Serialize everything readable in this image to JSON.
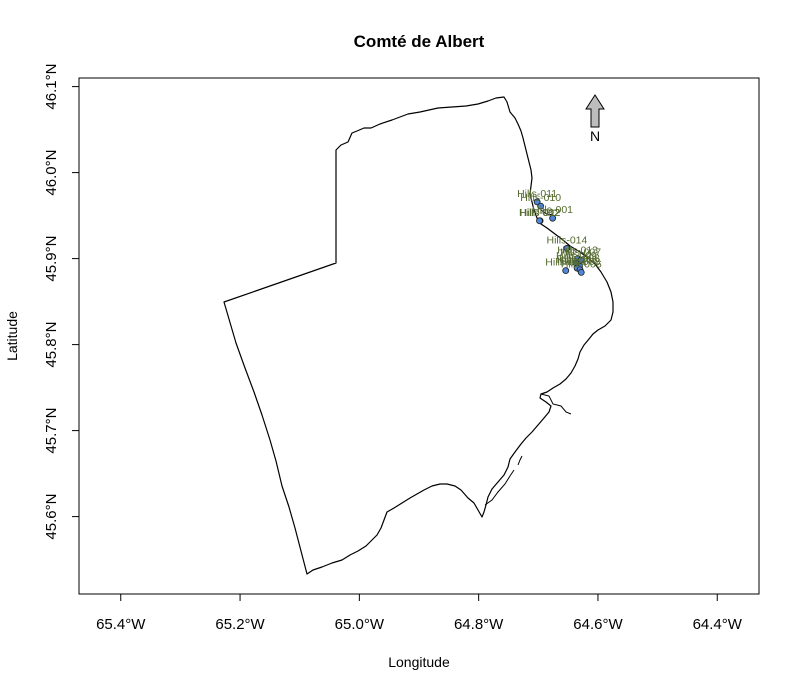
{
  "map": {
    "title": "Comté de Albert",
    "north_label": "N",
    "x_axis": {
      "label": "Longitude",
      "ticks": [
        -65.4,
        -65.2,
        -65.0,
        -64.8,
        -64.6,
        -64.4
      ]
    },
    "y_axis": {
      "label": "Latitude",
      "ticks": [
        45.6,
        45.7,
        45.8,
        45.9,
        46.0,
        46.1
      ]
    },
    "extent": {
      "lon": [
        -65.47,
        -64.33
      ],
      "lat": [
        45.51,
        46.11
      ]
    },
    "colors": {
      "site_fill": "#4f86d6",
      "site_stroke": "#1a1a1a",
      "label": "#556b2f",
      "boundary": "#000000",
      "arrow": "#bfbfbf"
    }
  },
  "chart_data": {
    "type": "scatter",
    "title": "Comté de Albert",
    "xlabel": "Longitude",
    "ylabel": "Latitude",
    "xlim": [
      -65.47,
      -64.33
    ],
    "ylim": [
      45.51,
      46.11
    ],
    "points": [
      {
        "name": "Hills-011",
        "lon": -64.702,
        "lat": 45.966
      },
      {
        "name": "Hills-010",
        "lon": -64.696,
        "lat": 45.961
      },
      {
        "name": "Hills-012",
        "lon": -64.697,
        "lat": 45.944
      },
      {
        "name": "Hills-001",
        "lon": -64.676,
        "lat": 45.947
      },
      {
        "name": "Hills-002",
        "lon": -64.698,
        "lat": 45.944
      },
      {
        "name": "Hills-014",
        "lon": -64.652,
        "lat": 45.912
      },
      {
        "name": "Hills-013",
        "lon": -64.634,
        "lat": 45.9
      },
      {
        "name": "Hills-007",
        "lon": -64.629,
        "lat": 45.898
      },
      {
        "name": "Hills-009",
        "lon": -64.636,
        "lat": 45.894
      },
      {
        "name": "Hills-008",
        "lon": -64.631,
        "lat": 45.891
      },
      {
        "name": "Hills-005",
        "lon": -64.635,
        "lat": 45.889
      },
      {
        "name": "Hills-003",
        "lon": -64.63,
        "lat": 45.887
      },
      {
        "name": "Hills-004",
        "lon": -64.654,
        "lat": 45.886
      },
      {
        "name": "Hills-006",
        "lon": -64.628,
        "lat": 45.884
      }
    ]
  }
}
